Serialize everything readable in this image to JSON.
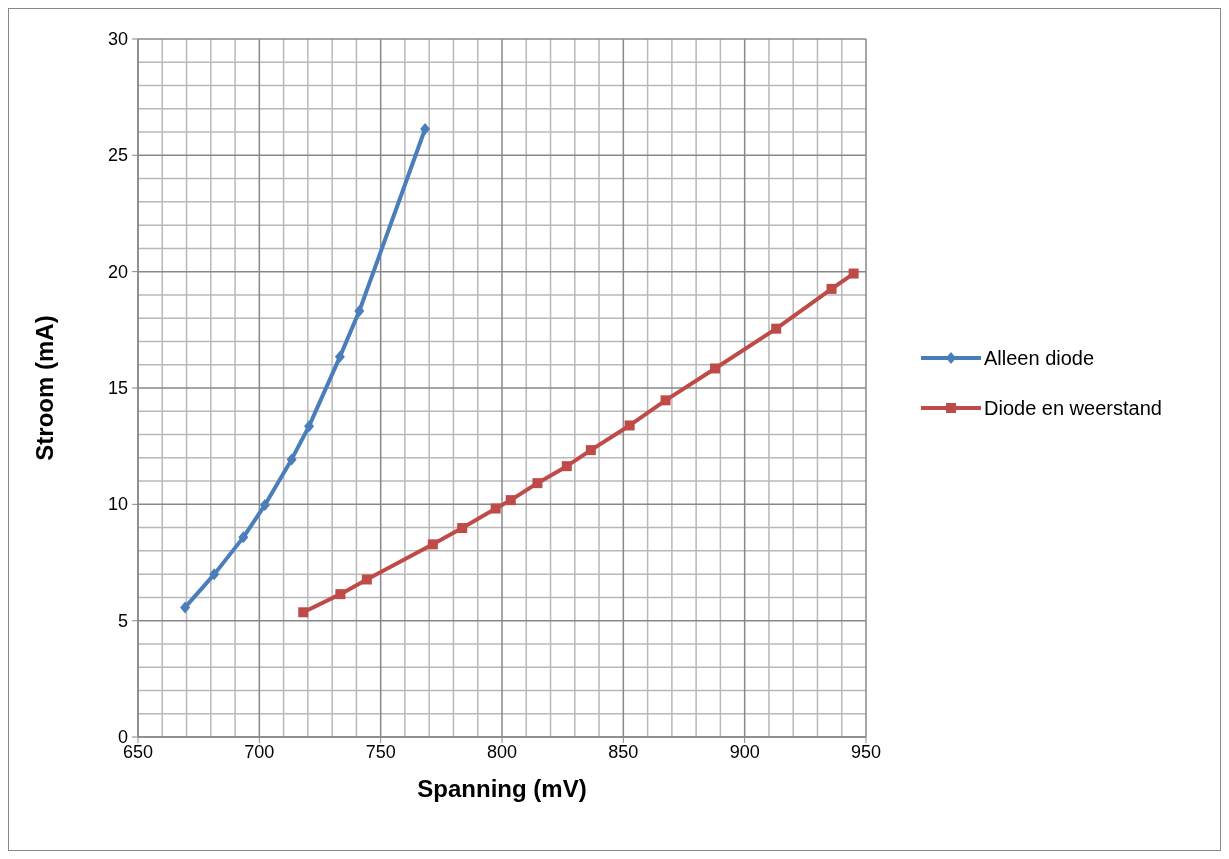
{
  "chart_data": {
    "type": "line",
    "xlabel": "Spanning (mV)",
    "ylabel": "Stroom (mA)",
    "xlim": [
      650,
      950
    ],
    "xticks": [
      650,
      700,
      750,
      800,
      850,
      900,
      950
    ],
    "ylim": [
      0,
      30
    ],
    "yticks": [
      0,
      5,
      10,
      15,
      20,
      25,
      30
    ],
    "grid": true,
    "legend": "right",
    "line_style": "solid",
    "series": [
      {
        "name": "Alleen diode",
        "color": "#4a7ebb",
        "marker": "diamond",
        "x": [
          669.4,
          681.4,
          693.4,
          702.3,
          713.3,
          720.5,
          733.2,
          741.2,
          768.3
        ],
        "values": [
          5.57,
          6.99,
          8.58,
          9.97,
          11.93,
          13.36,
          16.34,
          18.31,
          26.13
        ]
      },
      {
        "name": "Diode en weerstand",
        "color": "#be4b48",
        "marker": "square",
        "x": [
          718.1,
          733.4,
          744.3,
          771.5,
          783.6,
          797.4,
          803.6,
          814.6,
          826.7,
          836.6,
          852.6,
          867.4,
          887.8,
          913,
          935.8,
          944.9
        ],
        "values": [
          5.36,
          6.14,
          6.77,
          8.28,
          8.98,
          9.82,
          10.18,
          10.91,
          11.64,
          12.33,
          13.39,
          14.47,
          15.84,
          17.55,
          19.26,
          19.92
        ]
      }
    ]
  }
}
